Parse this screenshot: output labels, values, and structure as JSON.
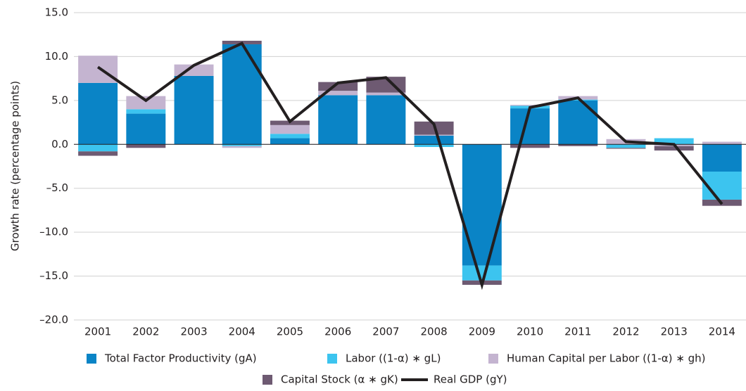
{
  "chart_data": {
    "type": "bar",
    "y_label": "Growth rate  (percentage points)",
    "categories": [
      "2001",
      "2002",
      "2003",
      "2004",
      "2005",
      "2006",
      "2007",
      "2008",
      "2009",
      "2010",
      "2011",
      "2012",
      "2013",
      "2014"
    ],
    "series": [
      {
        "name": "Total Factor Productivity (gA)",
        "color": "#0a84c6",
        "values": [
          7.0,
          3.5,
          7.8,
          11.4,
          0.7,
          5.6,
          5.6,
          1.0,
          -13.8,
          4.1,
          5.0,
          0,
          0,
          -3.1
        ]
      },
      {
        "name": "Labor ((1-α) ∗ gL)",
        "color": "#3cc4ef",
        "values": [
          -0.8,
          0.5,
          0,
          -0.2,
          0.5,
          0,
          0,
          -0.3,
          -1.7,
          0.3,
          0.1,
          -0.4,
          0.7,
          -3.2
        ]
      },
      {
        "name": "Human Capital per Labor ((1-α) ∗ gh)",
        "color": "#c4b4d0",
        "values": [
          3.1,
          1.5,
          1.3,
          -0.2,
          1.0,
          0.5,
          0.3,
          0.1,
          0,
          0.1,
          0.4,
          0.6,
          -0.2,
          0.3
        ]
      },
      {
        "name": "Capital Stock (α ∗ gK)",
        "color": "#6e5a72",
        "values": [
          -0.5,
          -0.4,
          0,
          0.4,
          0.5,
          1.0,
          1.8,
          1.5,
          -0.5,
          -0.4,
          -0.2,
          -0.1,
          -0.5,
          -0.7
        ]
      },
      {
        "name": "Real GDP (gY)",
        "color": "#231f20",
        "type": "line",
        "values": [
          8.8,
          5.0,
          9.0,
          11.5,
          2.6,
          7.0,
          7.6,
          2.3,
          -16.0,
          4.2,
          5.3,
          0.3,
          0.0,
          -6.8
        ]
      }
    ],
    "ylim": [
      -20,
      15
    ],
    "yticks": [
      {
        "value": -20,
        "label": "–20.0"
      },
      {
        "value": -15,
        "label": "–15.0"
      },
      {
        "value": -10,
        "label": "–10.0"
      },
      {
        "value": -5,
        "label": "–5.0"
      },
      {
        "value": 0,
        "label": "0.0"
      },
      {
        "value": 5,
        "label": "5.0"
      },
      {
        "value": 10,
        "label": "10.0"
      },
      {
        "value": 15,
        "label": "15.0"
      }
    ],
    "grid": true
  }
}
